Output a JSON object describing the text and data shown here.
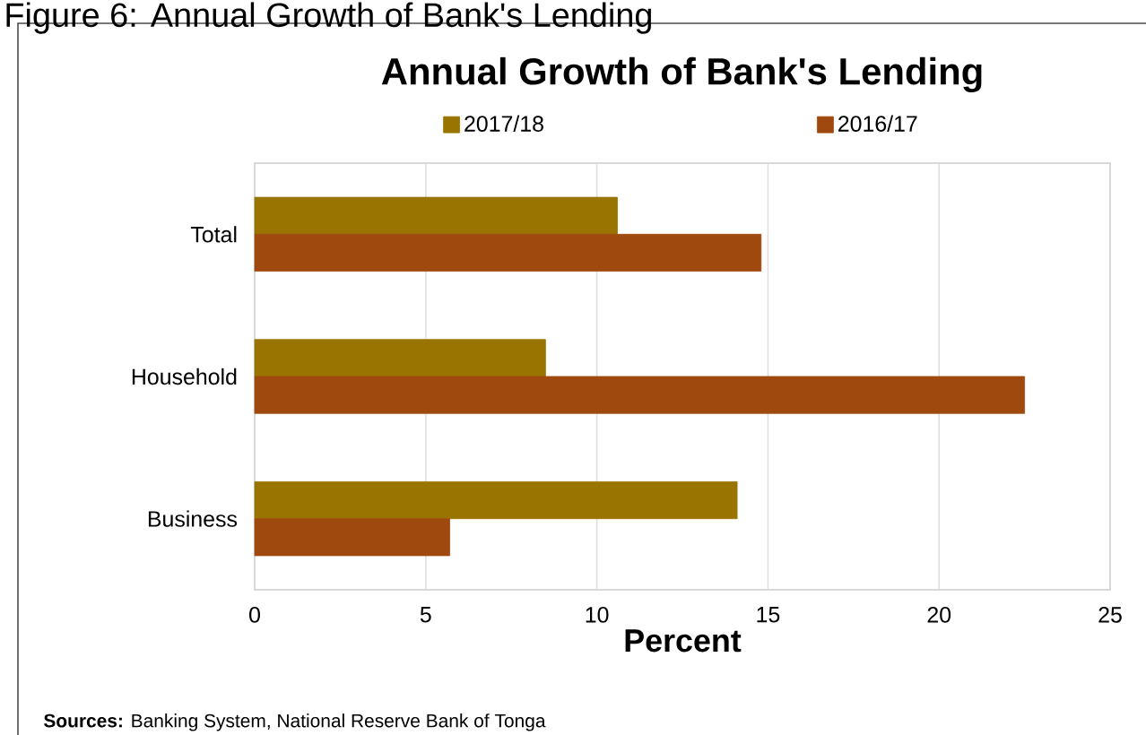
{
  "chart_data": {
    "type": "bar",
    "orientation": "horizontal",
    "title": "Annual Growth of Bank's Lending",
    "xlabel": "Percent",
    "categories": [
      "Total",
      "Household",
      "Business"
    ],
    "series": [
      {
        "name": "2017/18",
        "color": "#9a7400",
        "values": [
          10.6,
          8.5,
          14.1
        ]
      },
      {
        "name": "2016/17",
        "color": "#a0490f",
        "values": [
          14.8,
          22.5,
          5.7
        ]
      }
    ],
    "xlim": [
      0,
      25
    ],
    "xticks": [
      0,
      5,
      10,
      15,
      20,
      25
    ],
    "grid": "x",
    "legend": "top",
    "annotations": [
      "Figure 6: Annual Growth of Bank's Lending",
      "**Sources:** Banking System, National Reserve Bank of Tonga"
    ]
  }
}
